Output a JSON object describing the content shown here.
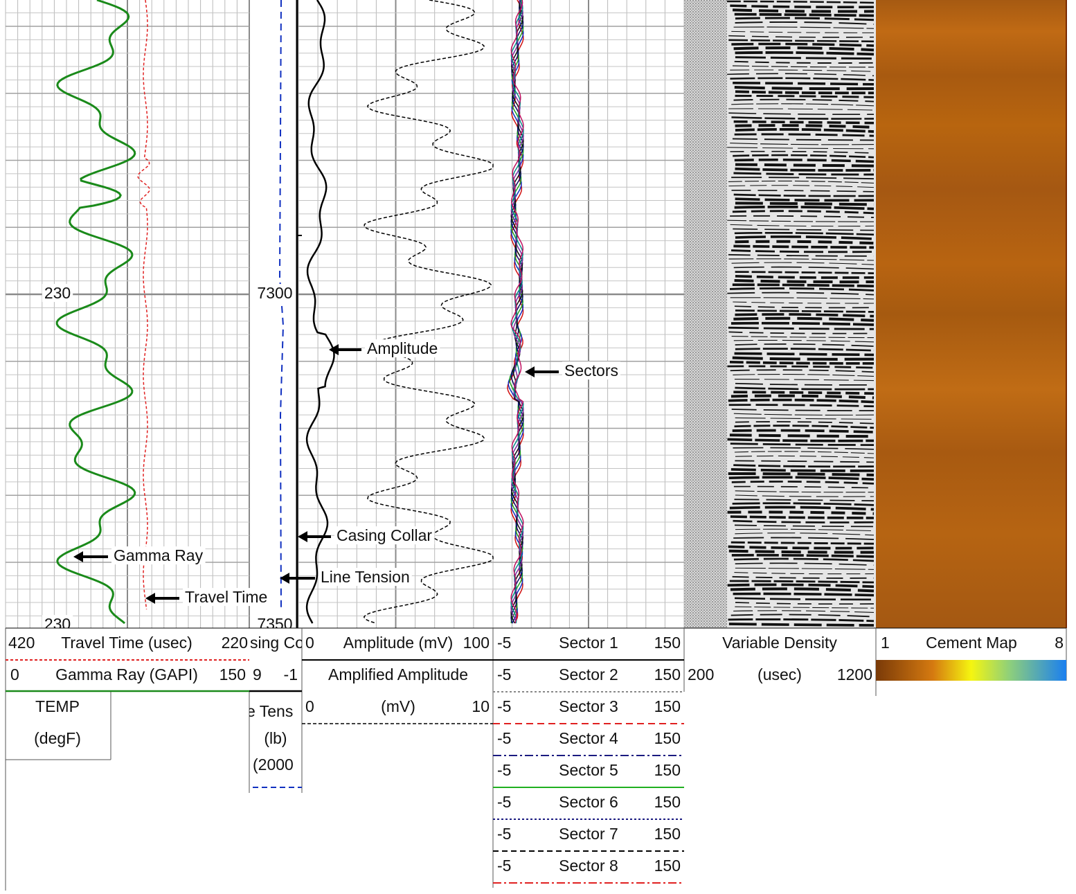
{
  "plot": {
    "gamma_scale_labels": [
      "230",
      "230"
    ],
    "depth_labels": [
      "7300",
      "7350"
    ],
    "annotations": {
      "amplitude": "Amplitude",
      "sectors": "Sectors",
      "casing_collar": "Casing Collar",
      "gamma_ray": "Gamma Ray",
      "line_tension": "Line Tension",
      "travel_time": "Travel Time"
    }
  },
  "header": {
    "track1": {
      "travel_time": {
        "left": "420",
        "name": "Travel Time (usec)",
        "right": "220"
      },
      "gamma_ray": {
        "left": "0",
        "name": "Gamma Ray (GAPI)",
        "right": "150"
      },
      "temp": {
        "name": "TEMP",
        "unit": "(degF)"
      }
    },
    "depth": {
      "casing_collar": {
        "name": "sing Co",
        "left": "9",
        "right": "-1"
      },
      "line_tension": {
        "name": "e Tens",
        "unit": "(lb)",
        "scale": "(2000"
      }
    },
    "track2": {
      "amplitude": {
        "left": "0",
        "name": "Amplitude (mV)",
        "right": "100"
      },
      "amplified": {
        "name": "Amplified Amplitude",
        "left": "0",
        "unit": "(mV)",
        "right": "10"
      }
    },
    "track3": {
      "sectors": [
        {
          "left": "-5",
          "name": "Sector 1",
          "right": "150"
        },
        {
          "left": "-5",
          "name": "Sector 2",
          "right": "150"
        },
        {
          "left": "-5",
          "name": "Sector 3",
          "right": "150"
        },
        {
          "left": "-5",
          "name": "Sector 4",
          "right": "150"
        },
        {
          "left": "-5",
          "name": "Sector 5",
          "right": "150"
        },
        {
          "left": "-5",
          "name": "Sector 6",
          "right": "150"
        },
        {
          "left": "-5",
          "name": "Sector 7",
          "right": "150"
        },
        {
          "left": "-5",
          "name": "Sector 8",
          "right": "150"
        }
      ]
    },
    "vdl": {
      "name": "Variable Density",
      "left": "200",
      "unit": "(usec)",
      "right": "1200"
    },
    "cement_map": {
      "left": "1",
      "name": "Cement Map",
      "right": "8"
    }
  }
}
